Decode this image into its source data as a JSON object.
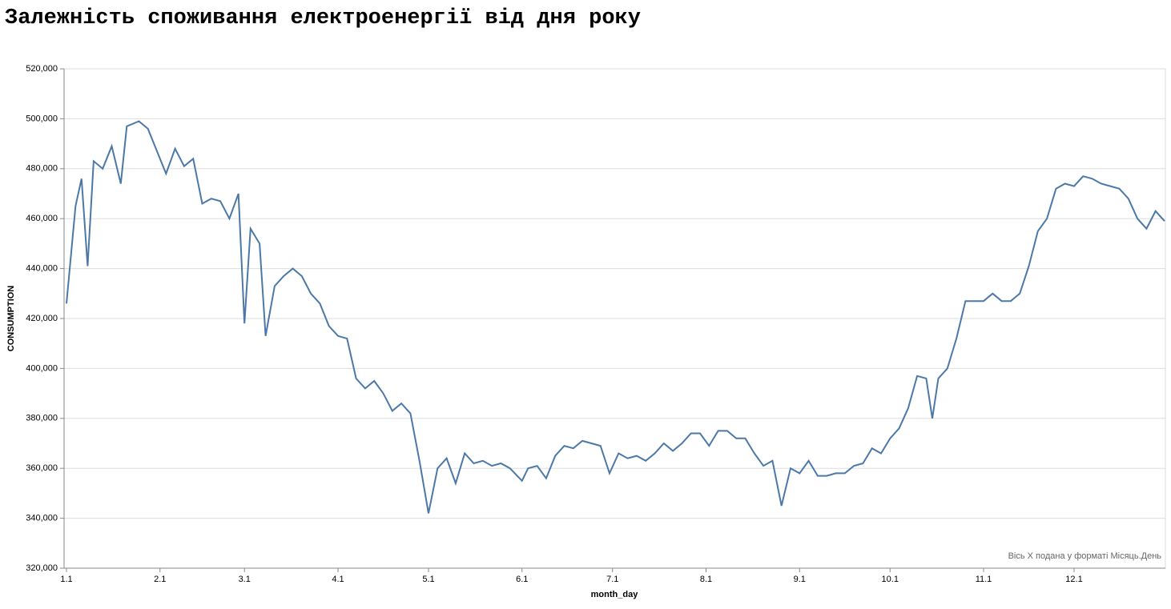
{
  "chart_data": {
    "type": "line",
    "title": "Залежність споживання електроенергії від дня року",
    "x_label": "month_day",
    "y_label": "CONSUMPTION",
    "annotation": "Вісь X подана у форматі Місяць.День",
    "x": [
      1,
      4,
      6,
      8,
      10,
      13,
      16,
      19,
      21,
      25,
      28,
      31,
      34,
      37,
      40,
      43,
      46,
      49,
      52,
      55,
      58,
      60,
      62,
      65,
      67,
      70,
      73,
      76,
      79,
      82,
      85,
      88,
      91,
      94,
      97,
      100,
      103,
      106,
      109,
      112,
      115,
      118,
      121,
      124,
      127,
      130,
      133,
      136,
      139,
      142,
      145,
      148,
      152,
      154,
      157,
      160,
      163,
      166,
      169,
      172,
      175,
      178,
      181,
      184,
      187,
      190,
      193,
      196,
      199,
      202,
      205,
      208,
      211,
      214,
      217,
      220,
      223,
      226,
      229,
      232,
      235,
      238,
      241,
      244,
      247,
      250,
      253,
      256,
      259,
      262,
      265,
      268,
      271,
      274,
      277,
      280,
      283,
      286,
      288,
      290,
      293,
      296,
      299,
      302,
      305,
      308,
      311,
      314,
      317,
      320,
      323,
      326,
      329,
      332,
      335,
      338,
      341,
      344,
      347,
      350,
      353,
      356,
      359,
      362,
      365
    ],
    "series": [
      {
        "name": "CONSUMPTION",
        "color": "#4c78a8",
        "values": [
          426000,
          465000,
          476000,
          441000,
          483000,
          480000,
          489000,
          474000,
          497000,
          499000,
          496000,
          487000,
          478000,
          488000,
          481000,
          484000,
          466000,
          468000,
          467000,
          460000,
          470000,
          418000,
          456000,
          450000,
          413000,
          433000,
          437000,
          440000,
          437000,
          430000,
          426000,
          417000,
          413000,
          412000,
          396000,
          392000,
          395000,
          390000,
          383000,
          386000,
          382000,
          363000,
          342000,
          360000,
          364000,
          354000,
          366000,
          362000,
          363000,
          361000,
          362000,
          360000,
          355000,
          360000,
          361000,
          356000,
          365000,
          369000,
          368000,
          371000,
          370000,
          369000,
          358000,
          366000,
          364000,
          365000,
          363000,
          366000,
          370000,
          367000,
          370000,
          374000,
          374000,
          369000,
          375000,
          375000,
          372000,
          372000,
          366000,
          361000,
          363000,
          345000,
          360000,
          358000,
          363000,
          357000,
          357000,
          358000,
          358000,
          361000,
          362000,
          368000,
          366000,
          372000,
          376000,
          384000,
          397000,
          396000,
          380000,
          396000,
          400000,
          412000,
          427000,
          427000,
          427000,
          430000,
          427000,
          427000,
          430000,
          441000,
          455000,
          460000,
          472000,
          474000,
          473000,
          477000,
          476000,
          474000,
          473000,
          472000,
          468000,
          460000,
          456000,
          463000,
          459000
        ]
      }
    ],
    "xlim": [
      1,
      365
    ],
    "xticks": [
      {
        "value": 1,
        "label": "1.1"
      },
      {
        "value": 32,
        "label": "2.1"
      },
      {
        "value": 60,
        "label": "3.1"
      },
      {
        "value": 91,
        "label": "4.1"
      },
      {
        "value": 121,
        "label": "5.1"
      },
      {
        "value": 152,
        "label": "6.1"
      },
      {
        "value": 182,
        "label": "7.1"
      },
      {
        "value": 213,
        "label": "8.1"
      },
      {
        "value": 244,
        "label": "9.1"
      },
      {
        "value": 274,
        "label": "10.1"
      },
      {
        "value": 305,
        "label": "11.1"
      },
      {
        "value": 335,
        "label": "12.1"
      }
    ],
    "ylim": [
      320000,
      520000
    ],
    "yticks": [
      {
        "value": 320000,
        "label": "320,000"
      },
      {
        "value": 340000,
        "label": "340,000"
      },
      {
        "value": 360000,
        "label": "360,000"
      },
      {
        "value": 380000,
        "label": "380,000"
      },
      {
        "value": 400000,
        "label": "400,000"
      },
      {
        "value": 420000,
        "label": "420,000"
      },
      {
        "value": 440000,
        "label": "440,000"
      },
      {
        "value": 460000,
        "label": "460,000"
      },
      {
        "value": 480000,
        "label": "480,000"
      },
      {
        "value": 500000,
        "label": "500,000"
      },
      {
        "value": 520000,
        "label": "520,000"
      }
    ],
    "grid": true
  }
}
